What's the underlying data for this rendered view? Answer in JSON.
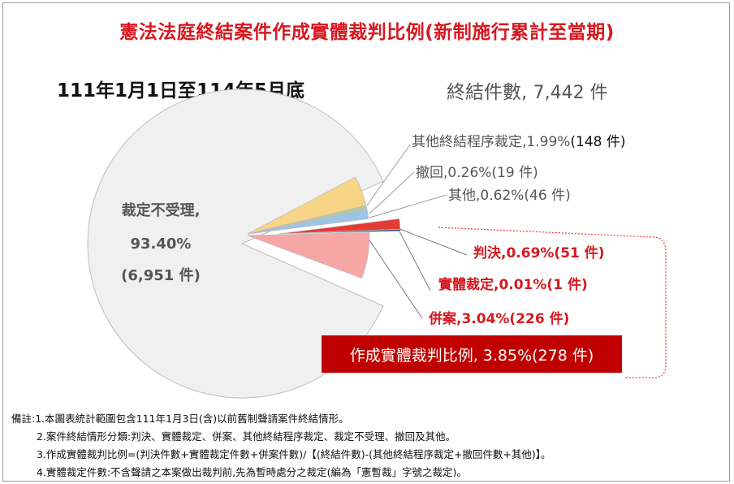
{
  "title": "憲法法庭終結案件作成實體裁判比例(新制施行累計至當期)",
  "period": "111年1月1日至114年5月底",
  "total": {
    "label": "終結件數,",
    "value": "7,442 件"
  },
  "chart_data": {
    "type": "pie",
    "title": "憲法法庭終結案件作成實體裁判比例(新制施行累計至當期)",
    "total_cases": 7442,
    "slices": [
      {
        "name": "裁定不受理",
        "percent": 93.4,
        "count": 6951,
        "color": "#f0f0f0",
        "exploded": false
      },
      {
        "name": "其他終結程序裁定",
        "percent": 1.99,
        "count": 148,
        "color": "#f8d486",
        "exploded": true
      },
      {
        "name": "撤回",
        "percent": 0.26,
        "count": 19,
        "color": "#b4c7a5",
        "exploded": true
      },
      {
        "name": "其他",
        "percent": 0.62,
        "count": 46,
        "color": "#9dc3e6",
        "exploded": true
      },
      {
        "name": "判決",
        "percent": 0.69,
        "count": 51,
        "color": "#e53935",
        "exploded": true
      },
      {
        "name": "實體裁定",
        "percent": 0.01,
        "count": 1,
        "color": "#1f3864",
        "exploded": true
      },
      {
        "name": "併案",
        "percent": 3.04,
        "count": 226,
        "color": "#f7a6a6",
        "exploded": true
      }
    ],
    "summary": {
      "name": "作成實體裁判比例",
      "percent": 3.85,
      "count": 278
    }
  },
  "labels": {
    "main": {
      "name": "裁定不受理,",
      "pct": "93.40%",
      "count": "(6,951 件)"
    },
    "other_proc": {
      "text": "其他終結程序裁定,1.99%",
      "count": "(148 件)"
    },
    "withdraw": "撤回,0.26%(19 件)",
    "others": "其他,0.62%(46 件)",
    "judgment": "判決,0.69%(51 件)",
    "ruling": "實體裁定,0.01%(1 件)",
    "merged": "併案,3.04%(226 件)",
    "ratio": "作成實體裁判比例, 3.85%(278 件)"
  },
  "notes": [
    "備註:1.本圖表統計範圍包含111年1月3日(含)以前舊制聲請案件終結情形。",
    "2.案件終結情形分類:判決、實體裁定、併案、其他終結程序裁定、裁定不受理、撤回及其他。",
    "3.作成實體裁判比例=(判決件數+實體裁定件數+併案件數)/【(終結件數)-(其他終結程序裁定+撤回件數+其他)】。",
    "4.實體裁定件數:不含聲請之本案做出裁判前,先為暫時處分之裁定(編為「憲暫裁」字號之裁定)。"
  ]
}
